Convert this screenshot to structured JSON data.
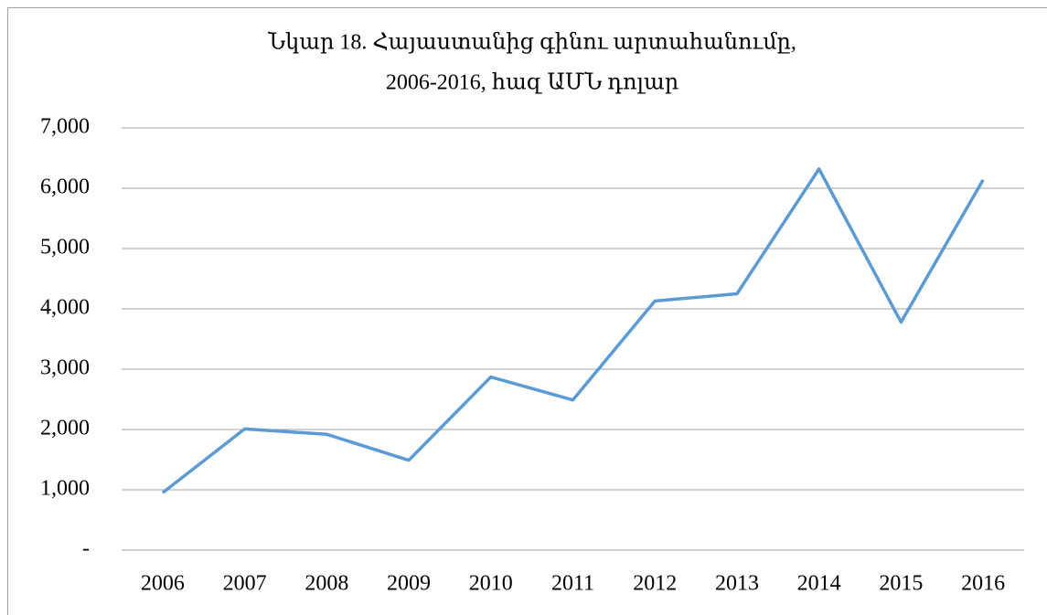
{
  "chart_data": {
    "type": "line",
    "title": [
      "Նկար 18. Հայաստանից գինու արտահանումը,",
      "2006-2016, հազ ԱՄՆ դոլար"
    ],
    "categories": [
      "2006",
      "2007",
      "2008",
      "2009",
      "2010",
      "2011",
      "2012",
      "2013",
      "2014",
      "2015",
      "2016"
    ],
    "values": [
      950,
      2010,
      1920,
      1490,
      2870,
      2490,
      4130,
      4250,
      6320,
      3780,
      6140
    ],
    "color": "#5b9bd5",
    "ylim": [
      0,
      7000
    ],
    "yticks": [
      {
        "value": 0,
        "label": "-"
      },
      {
        "value": 1000,
        "label": "1,000"
      },
      {
        "value": 2000,
        "label": "2,000"
      },
      {
        "value": 3000,
        "label": "3,000"
      },
      {
        "value": 4000,
        "label": "4,000"
      },
      {
        "value": 5000,
        "label": "5,000"
      },
      {
        "value": 6000,
        "label": "6,000"
      },
      {
        "value": 7000,
        "label": "7,000"
      }
    ],
    "grid": true
  }
}
